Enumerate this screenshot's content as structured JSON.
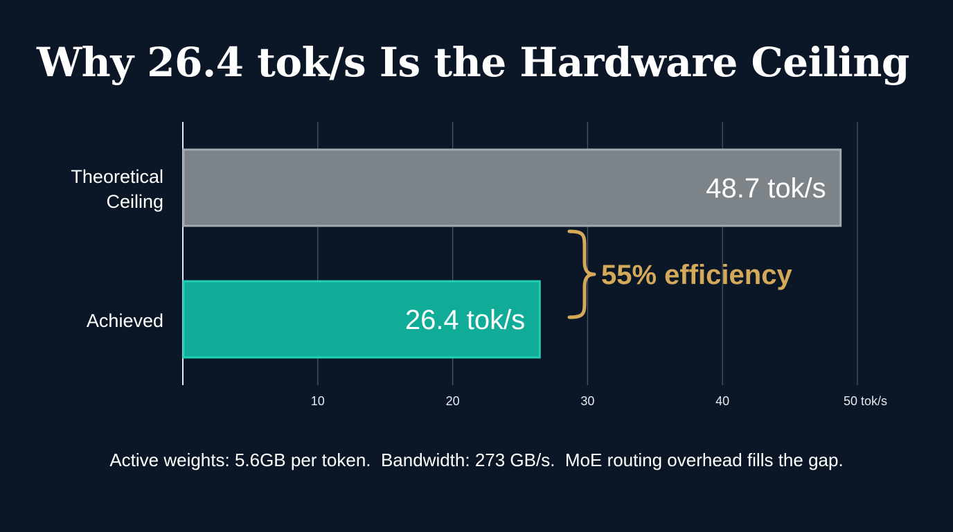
{
  "title": "Why 26.4 tok/s Is the Hardware Ceiling",
  "footnote": "Active weights: 5.6GB per token.  Bandwidth: 273 GB/s.  MoE routing overhead fills the gap.",
  "colors": {
    "background": "#0b1727",
    "theoretical_bar": "#7d8489",
    "achieved_bar": "#10ac98",
    "accent": "#d4a95a",
    "grid": "#4d5866"
  },
  "chart_data": {
    "type": "bar",
    "orientation": "horizontal",
    "categories": [
      [
        "Theoretical",
        "Ceiling"
      ],
      [
        "Achieved"
      ]
    ],
    "values": [
      48.7,
      26.4
    ],
    "value_labels": [
      "48.7 tok/s",
      "26.4 tok/s"
    ],
    "xlim": [
      0,
      50
    ],
    "x_ticks": [
      {
        "value": 10,
        "label": "10"
      },
      {
        "value": 20,
        "label": "20"
      },
      {
        "value": 30,
        "label": "30"
      },
      {
        "value": 40,
        "label": "40"
      },
      {
        "value": 50,
        "label": "50 tok/s"
      }
    ],
    "grid": true,
    "annotation": {
      "text": "55% efficiency",
      "type": "brace",
      "spans": [
        "Theoretical Ceiling",
        "Achieved"
      ]
    }
  }
}
